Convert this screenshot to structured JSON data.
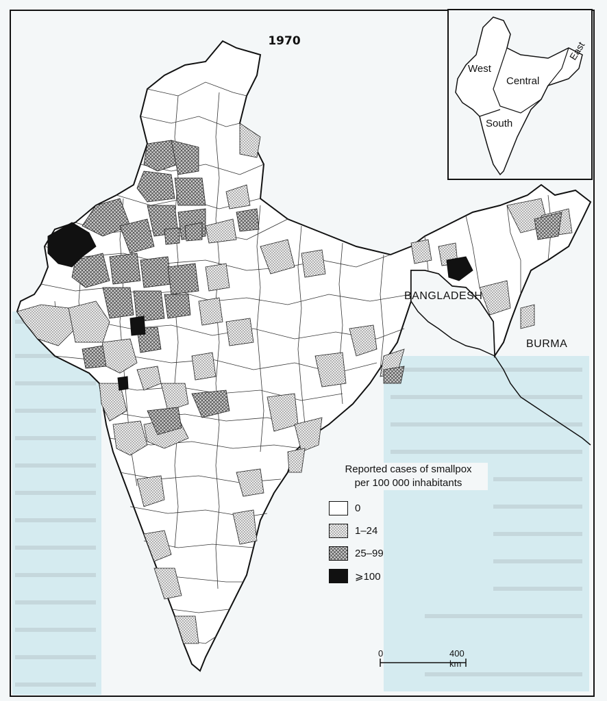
{
  "map": {
    "year": "1970",
    "labels": {
      "bangladesh": "BANGLADESH",
      "burma": "BURMA"
    },
    "inset": {
      "west": "West",
      "central": "Central",
      "east": "East",
      "south": "South"
    },
    "legend": {
      "title_line1": "Reported cases of smallpox",
      "title_line2": "per 100 000 inhabitants",
      "items": [
        {
          "label": "0",
          "fill": "#ffffff",
          "pattern": "none"
        },
        {
          "label": "1–24",
          "fill": "#d9d9d9",
          "pattern": "dots"
        },
        {
          "label": "25–99",
          "fill": "#a9a9a9",
          "pattern": "crosshatch"
        },
        {
          "label": "⩾100",
          "fill": "#111111",
          "pattern": "solid"
        }
      ]
    },
    "scale": {
      "start": "0",
      "end": "400 km"
    },
    "colors": {
      "sea_tint": "#cfe9ef",
      "border": "#111111",
      "paper": "#f4f7f8"
    }
  }
}
